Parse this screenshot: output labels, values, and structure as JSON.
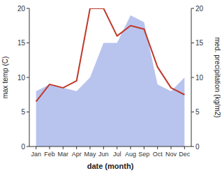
{
  "chart_data": {
    "type": "line",
    "xlabel": "date (month)",
    "ylabel": "max temp (C)",
    "y2label": "med. precipitation (kg/m2)",
    "categories": [
      "Jan",
      "Feb",
      "Mar",
      "Apr",
      "May",
      "Jun",
      "Jul",
      "Aug",
      "Sep",
      "Oct",
      "Nov",
      "Dec"
    ],
    "series": [
      {
        "type": "area",
        "axis": "y2",
        "color": "#b8c4ee",
        "values": [
          8.0,
          9.0,
          8.5,
          8.0,
          10.0,
          15.0,
          15.0,
          19.0,
          18.0,
          9.0,
          8.0,
          10.0
        ]
      },
      {
        "type": "line",
        "color": "#c0392b",
        "values": [
          6.5,
          9.0,
          8.5,
          9.5,
          20.0,
          20.0,
          16.0,
          17.5,
          17.0,
          11.5,
          8.5,
          7.5
        ]
      }
    ],
    "ylim": [
      0,
      20
    ],
    "yticks": [
      0,
      5,
      10,
      15,
      20
    ],
    "y2lim": [
      0,
      20
    ],
    "y2ticks": [
      0,
      5,
      10,
      15,
      20
    ],
    "grid": false
  }
}
